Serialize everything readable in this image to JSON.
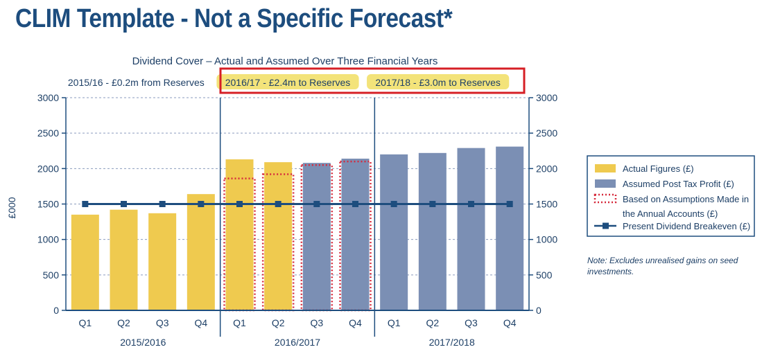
{
  "page": {
    "title": "CLIM Template - Not a Specific Forecast*"
  },
  "chart_data": {
    "type": "bar",
    "title": "Dividend Cover – Actual and Assumed Over Three Financial Years",
    "ylabel": "£000",
    "ylim": [
      0,
      3000
    ],
    "yticks": [
      0,
      500,
      1000,
      1500,
      2000,
      2500,
      3000
    ],
    "grid": true,
    "legend_position": "right",
    "categories": [
      "Q1",
      "Q2",
      "Q3",
      "Q4",
      "Q1",
      "Q2",
      "Q3",
      "Q4",
      "Q1",
      "Q2",
      "Q3",
      "Q4"
    ],
    "year_groups": [
      {
        "label": "2015/2016",
        "banner": "2015/16 - £0.2m from Reserves",
        "highlighted": false
      },
      {
        "label": "2016/2017",
        "banner": "2016/17 - £2.4m to Reserves",
        "highlighted": true
      },
      {
        "label": "2017/2018",
        "banner": "2017/18 - £3.0m to Reserves",
        "highlighted": true
      }
    ],
    "series": [
      {
        "name": "Actual Figures (£)",
        "kind": "bar",
        "color": "#efca4f",
        "values": [
          1350,
          1420,
          1370,
          1640,
          2130,
          2090,
          null,
          null,
          null,
          null,
          null,
          null
        ]
      },
      {
        "name": "Assumed Post Tax Profit (£)",
        "kind": "bar",
        "color": "#7b8fb4",
        "values": [
          null,
          null,
          null,
          null,
          null,
          null,
          2080,
          2140,
          2200,
          2220,
          2290,
          2310
        ]
      },
      {
        "name": "Based on Assumptions Made in the Annual Accounts (£)",
        "kind": "dotted-outline",
        "color": "#d62a3c",
        "values": [
          null,
          null,
          null,
          null,
          1860,
          1920,
          2050,
          2100,
          null,
          null,
          null,
          null
        ]
      },
      {
        "name": "Present Dividend Breakeven (£)",
        "kind": "line",
        "color": "#1d4d7e",
        "values": [
          1500,
          1500,
          1500,
          1500,
          1500,
          1500,
          1500,
          1500,
          1500,
          1500,
          1500,
          1500
        ]
      }
    ],
    "legend": [
      {
        "label_lines": [
          "Actual Figures (£)"
        ],
        "swatch": "fill",
        "color": "#efca4f"
      },
      {
        "label_lines": [
          "Assumed Post Tax Profit (£)"
        ],
        "swatch": "fill",
        "color": "#7b8fb4"
      },
      {
        "label_lines": [
          "Based on Assumptions Made in",
          "the Annual Accounts (£)"
        ],
        "swatch": "dotted",
        "color": "#d62a3c"
      },
      {
        "label_lines": [
          "Present Dividend Breakeven (£)"
        ],
        "swatch": "line-marker",
        "color": "#1d4d7e"
      }
    ],
    "note_lines": [
      "Note: Excludes unrealised gains on seed",
      "investments."
    ],
    "colors": {
      "axis": "#1d4d7e",
      "grid": "#8a9bbd",
      "highlight_box": "#d61f26",
      "banner_highlight": "#f3e37a",
      "text": "#1d3f66"
    }
  }
}
